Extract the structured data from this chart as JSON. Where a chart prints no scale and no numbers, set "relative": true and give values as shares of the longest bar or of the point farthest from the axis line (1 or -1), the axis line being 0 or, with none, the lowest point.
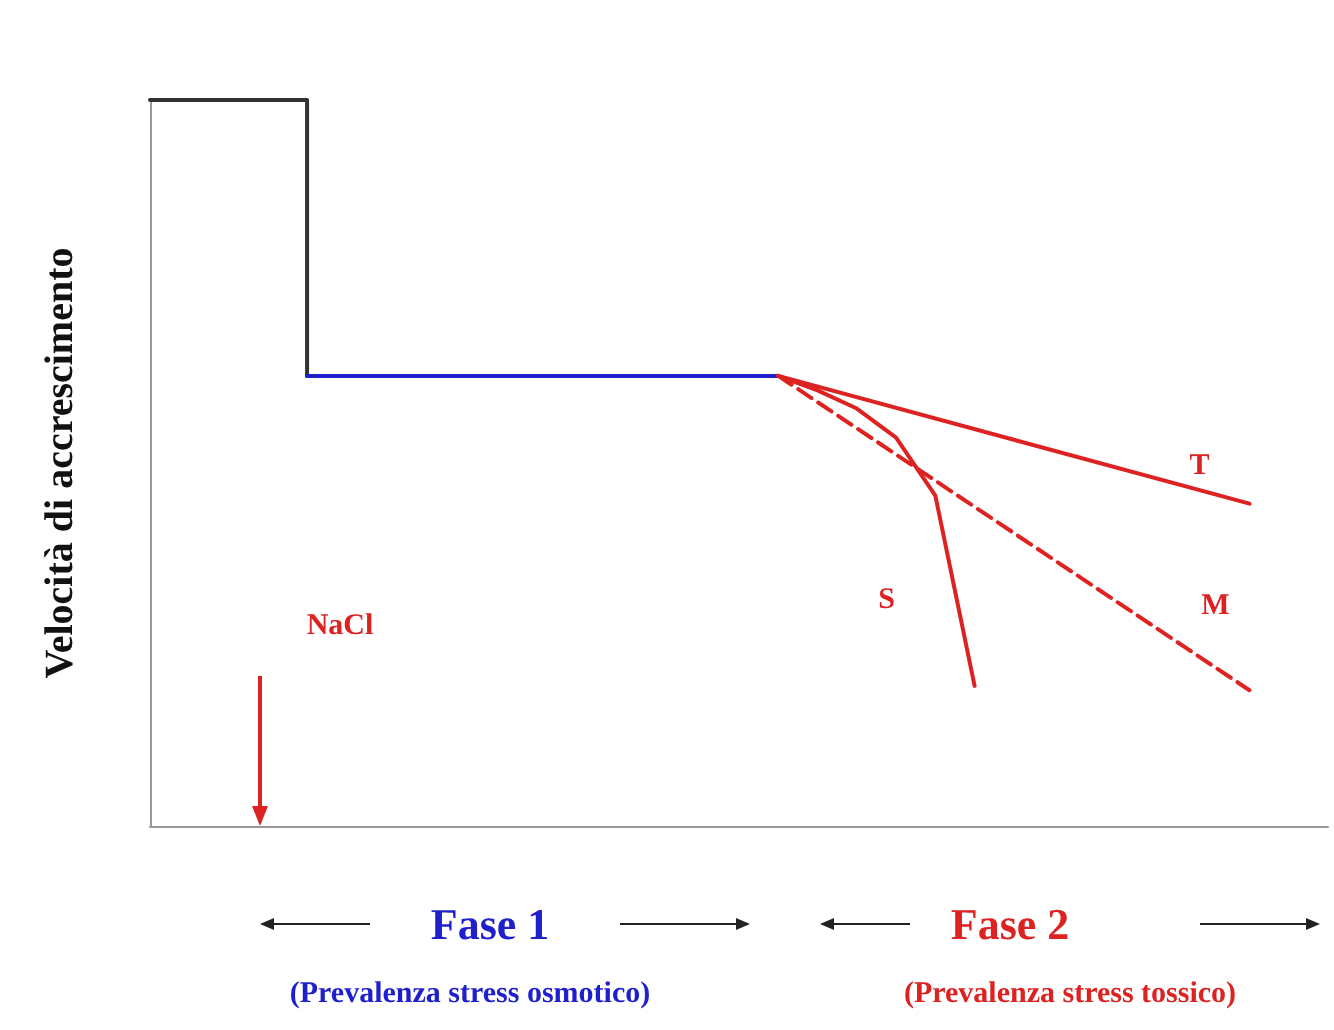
{
  "chart_data": {
    "type": "line",
    "relative": true,
    "ylabel": "Velocità di accrescimento",
    "grid": false,
    "legend": false,
    "marker": "none",
    "categories": [
      null,
      null,
      null,
      null,
      null,
      null,
      null,
      null,
      null,
      null,
      null,
      null,
      null,
      null,
      null,
      null,
      null,
      null,
      null,
      null,
      null,
      null,
      null,
      null,
      null,
      null,
      null,
      null,
      null,
      null,
      null
    ],
    "series": [
      {
        "type": "step",
        "color": "#333333",
        "values": [
          1,
          1,
          1,
          1,
          0.62,
          null,
          null,
          null,
          null,
          null,
          null,
          null,
          null,
          null,
          null,
          null,
          null,
          null,
          null,
          null,
          null,
          null,
          null,
          null,
          null,
          null,
          null,
          null,
          null,
          null,
          null
        ]
      },
      {
        "color": "#1f1fcc",
        "values": [
          null,
          null,
          null,
          null,
          0.62,
          0.62,
          0.62,
          0.62,
          0.62,
          0.62,
          0.62,
          0.62,
          0.62,
          0.62,
          0.62,
          0.62,
          0.62,
          null,
          null,
          null,
          null,
          null,
          null,
          null,
          null,
          null,
          null,
          null,
          null,
          null,
          null
        ]
      },
      {
        "name": "T",
        "color": "#dd2222",
        "values": [
          null,
          null,
          null,
          null,
          null,
          null,
          null,
          null,
          null,
          null,
          null,
          null,
          null,
          null,
          null,
          null,
          0.62,
          null,
          null,
          null,
          null,
          null,
          null,
          null,
          null,
          null,
          null,
          null,
          0.444,
          null,
          null
        ]
      },
      {
        "name": "M",
        "color": "#dd2222",
        "line_style": "dashed",
        "values": [
          null,
          null,
          null,
          null,
          null,
          null,
          null,
          null,
          null,
          null,
          null,
          null,
          null,
          null,
          null,
          null,
          0.62,
          null,
          null,
          null,
          null,
          null,
          null,
          null,
          null,
          null,
          null,
          null,
          0.187,
          null,
          null
        ]
      },
      {
        "name": "S",
        "color": "#dd2222",
        "values": [
          null,
          null,
          null,
          null,
          null,
          null,
          null,
          null,
          null,
          null,
          null,
          null,
          null,
          null,
          null,
          null,
          0.62,
          0.6,
          0.575,
          0.535,
          0.455,
          0.193,
          null,
          null,
          null,
          null,
          null,
          null,
          null,
          null,
          null
        ]
      }
    ],
    "annotations": [
      "NaCl",
      "Fase 1",
      "(Prevalenza stress osmotico)",
      "Fase 2",
      "(Prevalenza stress tossico)"
    ]
  }
}
